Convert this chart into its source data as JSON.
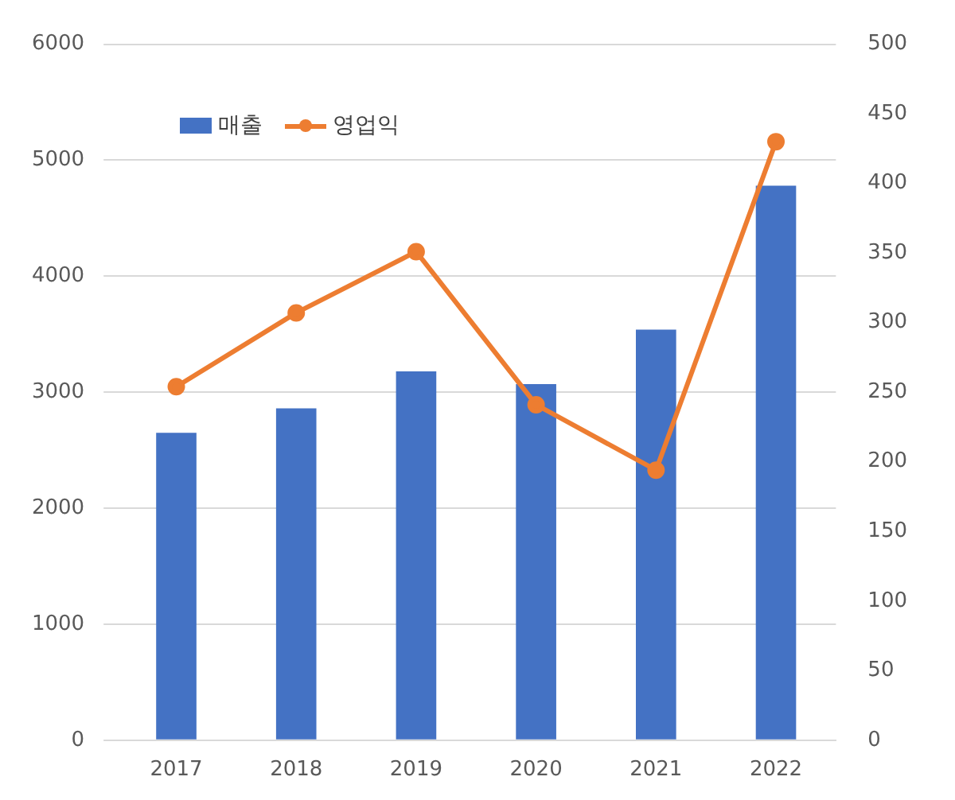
{
  "chart_data": {
    "type": "bar",
    "categories": [
      "2017",
      "2018",
      "2019",
      "2020",
      "2021",
      "2022"
    ],
    "series": [
      {
        "name": "매출",
        "color": "#4472c4",
        "values": [
          2650,
          2860,
          3180,
          3070,
          3540,
          4780
        ]
      },
      {
        "name": "영업익",
        "type": "line",
        "axis": "y2",
        "color": "#ed7d31",
        "values": [
          254,
          307,
          351,
          241,
          194,
          430
        ]
      }
    ],
    "ylim": [
      0,
      6000
    ],
    "yticks": [
      0,
      1000,
      2000,
      3000,
      4000,
      5000,
      6000
    ],
    "y2lim": [
      0,
      500
    ],
    "y2ticks": [
      0,
      50,
      100,
      150,
      200,
      250,
      300,
      350,
      400,
      450,
      500
    ],
    "grid": "y",
    "legend": "top left",
    "marker": "circle",
    "line_style": "solid"
  }
}
